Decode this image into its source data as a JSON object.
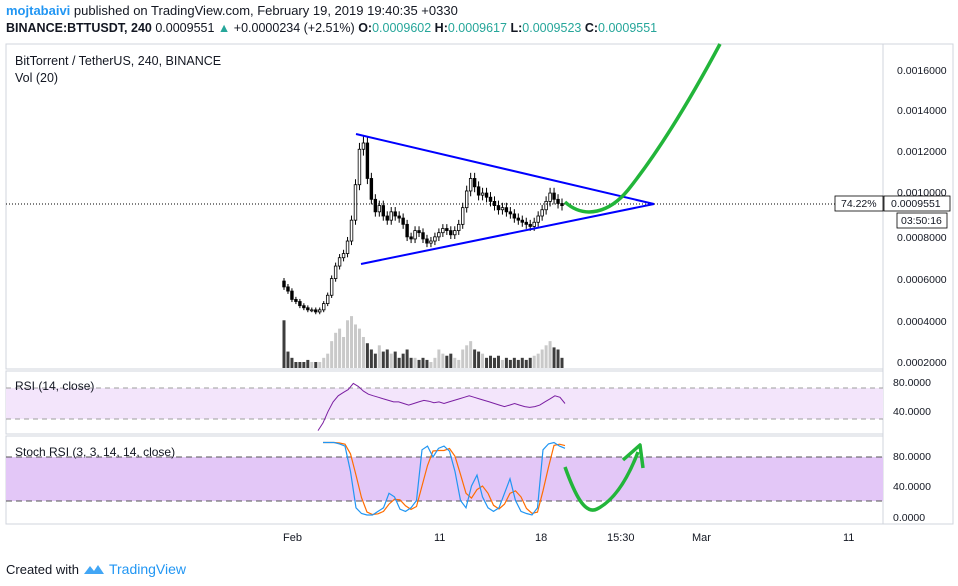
{
  "header": {
    "author": "mojtabaivi",
    "published_text": "published on TradingView.com, February 19, 2019 19:40:35 +0330",
    "symbol": "BINANCE:BTTUSDT, 240",
    "price": "0.0009551",
    "change": "+0.0000234 (+2.51%)",
    "open_label": "O:",
    "open": "0.0009602",
    "high_label": "H:",
    "high": "0.0009617",
    "low_label": "L:",
    "low": "0.0009523",
    "close_label": "C:",
    "close": "0.0009551"
  },
  "panes": {
    "main_title": "BitTorrent / TetherUS, 240, BINANCE",
    "vol_label": "Vol (20)",
    "rsi_label": "RSI (14, close)",
    "stoch_label": "Stoch RSI (3, 3, 14, 14, close)"
  },
  "price_axis": {
    "ticks": [
      "0.0016000",
      "0.0014000",
      "0.0012000",
      "0.0010000",
      "0.0008000",
      "0.0006000",
      "0.0004000",
      "0.0002000"
    ],
    "tick_values": [
      0.0016,
      0.0014,
      0.0012,
      0.001,
      0.0008,
      0.0006,
      0.0004,
      0.0002
    ],
    "current_price_label": "0.0009551",
    "percent_label": "74.22%",
    "countdown_label": "03:50:16"
  },
  "rsi_axis": {
    "ticks": [
      "80.0000",
      "40.0000"
    ],
    "tick_values": [
      80,
      40
    ]
  },
  "stoch_axis": {
    "ticks": [
      "80.0000",
      "40.0000",
      "0.0000"
    ],
    "tick_values": [
      80,
      40,
      0
    ]
  },
  "time_axis": {
    "ticks": [
      "Feb",
      "11",
      "18",
      "15:30",
      "Mar",
      "11"
    ]
  },
  "footer": {
    "created_with": "Created with",
    "brand": "TradingView"
  },
  "colors": {
    "candle": "#000000",
    "trend": "#0000ff",
    "projection": "#22b53a",
    "rsi_line": "#7b1fa2",
    "rsi_band": "#f3e5fb",
    "stoch_band": "#e3c7f7",
    "stoch_k": "#2196f3",
    "stoch_d": "#ff6d00"
  },
  "chart_data": {
    "type": "candlestick",
    "title": "BitTorrent / TetherUS, 240, BINANCE",
    "ylim": [
      0.00017,
      0.00175
    ],
    "close_series": [
      0.00056,
      0.00054,
      0.0005,
      0.00049,
      0.00047,
      0.00046,
      0.00045,
      0.00045,
      0.00044,
      0.00045,
      0.00048,
      0.00052,
      0.0006,
      0.00066,
      0.0007,
      0.00072,
      0.00078,
      0.00088,
      0.00105,
      0.00122,
      0.00125,
      0.00108,
      0.00098,
      0.00092,
      0.00095,
      0.0009,
      0.00088,
      0.00092,
      0.0009,
      0.00089,
      0.00086,
      0.0008,
      0.00079,
      0.00083,
      0.00082,
      0.00079,
      0.00077,
      0.00078,
      0.0008,
      0.00082,
      0.00084,
      0.00083,
      0.00081,
      0.00083,
      0.00086,
      0.00094,
      0.00102,
      0.00108,
      0.00104,
      0.001,
      0.00101,
      0.00099,
      0.00097,
      0.00095,
      0.00093,
      0.00094,
      0.00092,
      0.00091,
      0.00089,
      0.00088,
      0.00087,
      0.00086,
      0.00085,
      0.00087,
      0.0009,
      0.00093,
      0.00097,
      0.00101,
      0.00098,
      0.00096,
      0.00095
    ],
    "volume_series": [
      0.0004,
      0.00025,
      0.00022,
      0.0002,
      0.0002,
      0.0002,
      0.00021,
      0.0002,
      0.0002,
      0.0002,
      0.00022,
      0.00024,
      0.0003,
      0.00034,
      0.00036,
      0.00032,
      0.0004,
      0.00042,
      0.00038,
      0.00036,
      0.00032,
      0.00029,
      0.00026,
      0.00024,
      0.00028,
      0.00025,
      0.00026,
      0.00024,
      0.00025,
      0.00022,
      0.00024,
      0.00026,
      0.00022,
      0.00022,
      0.00021,
      0.00022,
      0.00021,
      0.0002,
      0.00022,
      0.00026,
      0.00024,
      0.00023,
      0.00024,
      0.00022,
      0.00021,
      0.00026,
      0.00028,
      0.0003,
      0.00026,
      0.00025,
      0.00024,
      0.00022,
      0.00023,
      0.00022,
      0.00023,
      0.00021,
      0.00022,
      0.00021,
      0.00022,
      0.00021,
      0.00022,
      0.00021,
      0.00022,
      0.00023,
      0.00024,
      0.00026,
      0.00028,
      0.0003,
      0.00027,
      0.00026,
      0.00022
    ],
    "rsi_series": [
      25,
      35,
      50,
      62,
      70,
      74,
      78,
      86,
      82,
      76,
      72,
      70,
      68,
      66,
      64,
      62,
      62,
      60,
      58,
      60,
      62,
      64,
      63,
      61,
      62,
      60,
      62,
      64,
      66,
      68,
      70,
      68,
      66,
      64,
      62,
      60,
      58,
      56,
      58,
      60,
      58,
      56,
      55,
      56,
      58,
      62,
      66,
      70,
      68,
      60
    ],
    "stoch_series": [
      100,
      100,
      100,
      98,
      95,
      60,
      10,
      2,
      0,
      0,
      5,
      10,
      30,
      25,
      8,
      5,
      10,
      20,
      90,
      95,
      80,
      92,
      95,
      88,
      60,
      20,
      10,
      40,
      55,
      25,
      10,
      5,
      10,
      30,
      50,
      20,
      5,
      2,
      0,
      10,
      90,
      98,
      100,
      95,
      92
    ],
    "trendlines": [
      {
        "name": "upper",
        "from": "peak near 0.00128",
        "to": "apex near 0.00095"
      },
      {
        "name": "lower",
        "from": "0.00067",
        "to": "apex near 0.00095"
      }
    ]
  }
}
